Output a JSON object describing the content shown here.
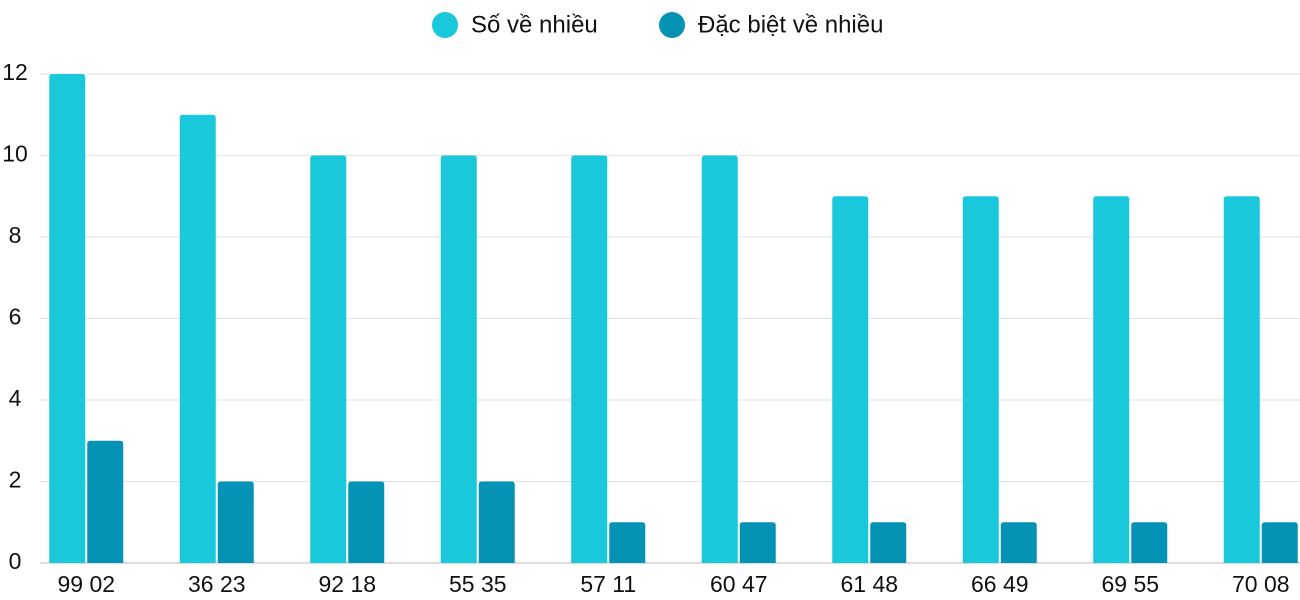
{
  "chart_data": {
    "type": "bar",
    "categories": [
      "99 02",
      "36 23",
      "92 18",
      "55 35",
      "57 11",
      "60 47",
      "61 48",
      "66 49",
      "69 55",
      "70 08"
    ],
    "series": [
      {
        "name": "Số về nhiều",
        "color": "#19c8db",
        "values": [
          12,
          11,
          10,
          10,
          10,
          10,
          9,
          9,
          9,
          9
        ]
      },
      {
        "name": "Đặc biệt về nhiều",
        "color": "#0593b5",
        "values": [
          3,
          2,
          2,
          2,
          1,
          1,
          1,
          1,
          1,
          1
        ]
      }
    ],
    "ylim": [
      0,
      12
    ],
    "yticks": [
      0,
      2,
      4,
      6,
      8,
      10,
      12
    ],
    "grid": true,
    "legend": "top"
  }
}
